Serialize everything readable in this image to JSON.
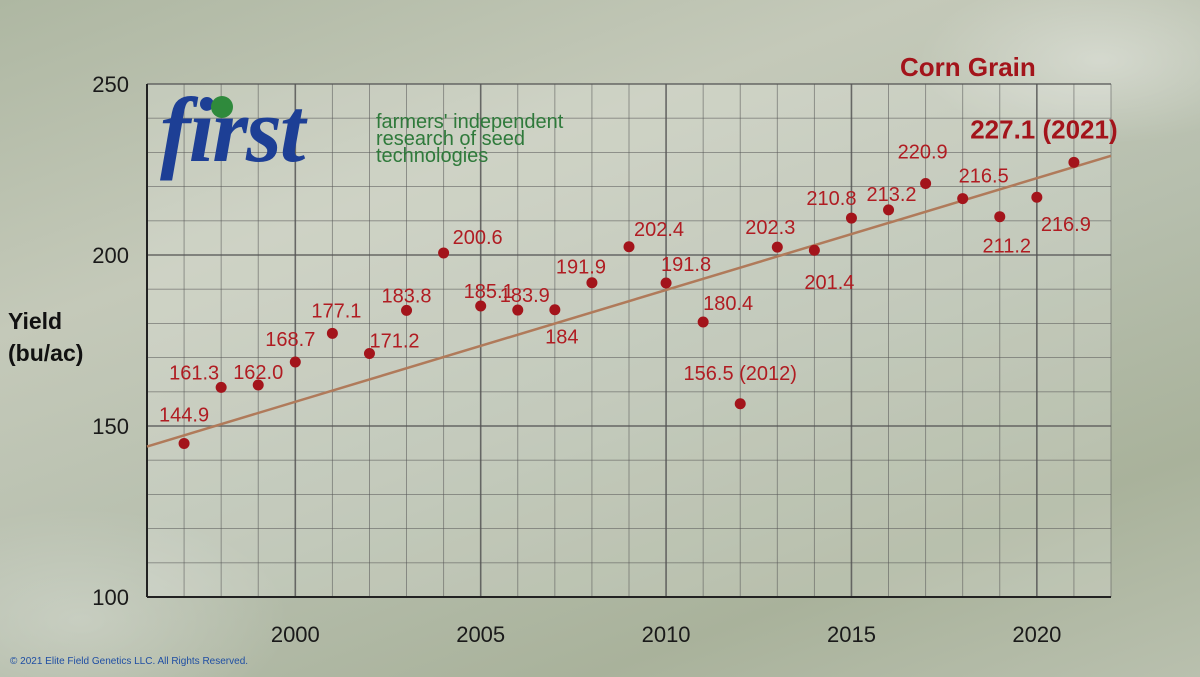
{
  "chart_data": {
    "type": "scatter",
    "title": "Corn Grain",
    "ylabel_line1": "Yield",
    "ylabel_line2": "(bu/ac)",
    "xlabel": "",
    "xlim": [
      1996,
      2022
    ],
    "ylim": [
      100,
      250
    ],
    "xticks": [
      2000,
      2005,
      2010,
      2015,
      2020
    ],
    "yticks": [
      100,
      150,
      200,
      250
    ],
    "grid": true,
    "points": [
      {
        "x": 1997,
        "y": 144.9,
        "label": "144.9"
      },
      {
        "x": 1998,
        "y": 161.3,
        "label": "161.3"
      },
      {
        "x": 1999,
        "y": 162.0,
        "label": "162.0"
      },
      {
        "x": 2000,
        "y": 168.7,
        "label": "168.7"
      },
      {
        "x": 2001,
        "y": 177.1,
        "label": "177.1"
      },
      {
        "x": 2002,
        "y": 171.2,
        "label": "171.2"
      },
      {
        "x": 2003,
        "y": 183.8,
        "label": "183.8"
      },
      {
        "x": 2004,
        "y": 200.6,
        "label": "200.6"
      },
      {
        "x": 2005,
        "y": 185.1,
        "label": "185.1"
      },
      {
        "x": 2006,
        "y": 183.9,
        "label": "183.9"
      },
      {
        "x": 2007,
        "y": 184.0,
        "label": "184"
      },
      {
        "x": 2008,
        "y": 191.9,
        "label": "191.9"
      },
      {
        "x": 2009,
        "y": 202.4,
        "label": "202.4"
      },
      {
        "x": 2010,
        "y": 191.8,
        "label": "191.8"
      },
      {
        "x": 2011,
        "y": 180.4,
        "label": "180.4"
      },
      {
        "x": 2012,
        "y": 156.5,
        "label": "156.5 (2012)"
      },
      {
        "x": 2013,
        "y": 202.3,
        "label": "202.3"
      },
      {
        "x": 2014,
        "y": 201.4,
        "label": "201.4"
      },
      {
        "x": 2015,
        "y": 210.8,
        "label": "210.8"
      },
      {
        "x": 2016,
        "y": 213.2,
        "label": "213.2"
      },
      {
        "x": 2017,
        "y": 220.9,
        "label": "220.9"
      },
      {
        "x": 2018,
        "y": 216.5,
        "label": "216.5"
      },
      {
        "x": 2019,
        "y": 211.2,
        "label": "211.2"
      },
      {
        "x": 2020,
        "y": 216.9,
        "label": "216.9"
      },
      {
        "x": 2021,
        "y": 227.1,
        "label": "227.1 (2021)",
        "highlight": true
      }
    ],
    "trendline": {
      "x": [
        1996,
        2022
      ],
      "y": [
        144.0,
        229.0
      ]
    },
    "colors": {
      "point": "#a3141b",
      "label": "#b01c22",
      "trend": "#b07a5a",
      "grid": "#555555"
    }
  },
  "logo": {
    "wordmark": "first",
    "tagline_1": "farmers' independent",
    "tagline_2": "research of seed",
    "tagline_3": "technologies",
    "colors": {
      "wordmark": "#1d3f95",
      "dot": "#2f8a3c",
      "tagline": "#2f7a3b"
    }
  },
  "footer": {
    "copyright": "© 2021 Elite Field Genetics LLC. All Rights Reserved."
  }
}
